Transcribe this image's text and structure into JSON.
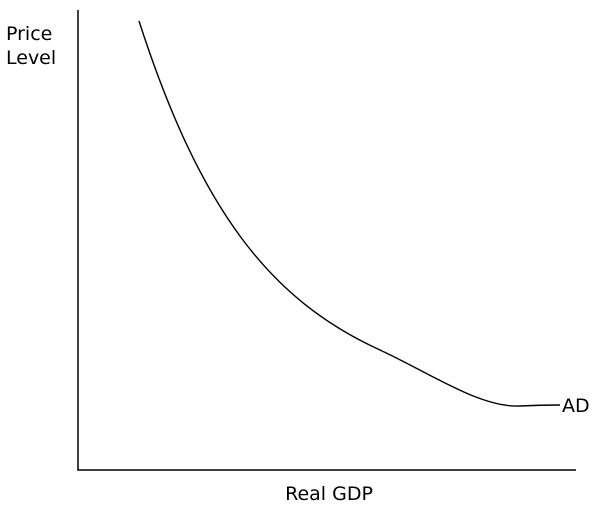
{
  "diagram": {
    "y_axis_label_line1": "Price",
    "y_axis_label_line2": "Level",
    "x_axis_label": "Real GDP",
    "curve_label": "AD",
    "curve_shape": "downward-sloping, convex",
    "colors": {
      "line": "#000000",
      "background": "#ffffff"
    }
  }
}
